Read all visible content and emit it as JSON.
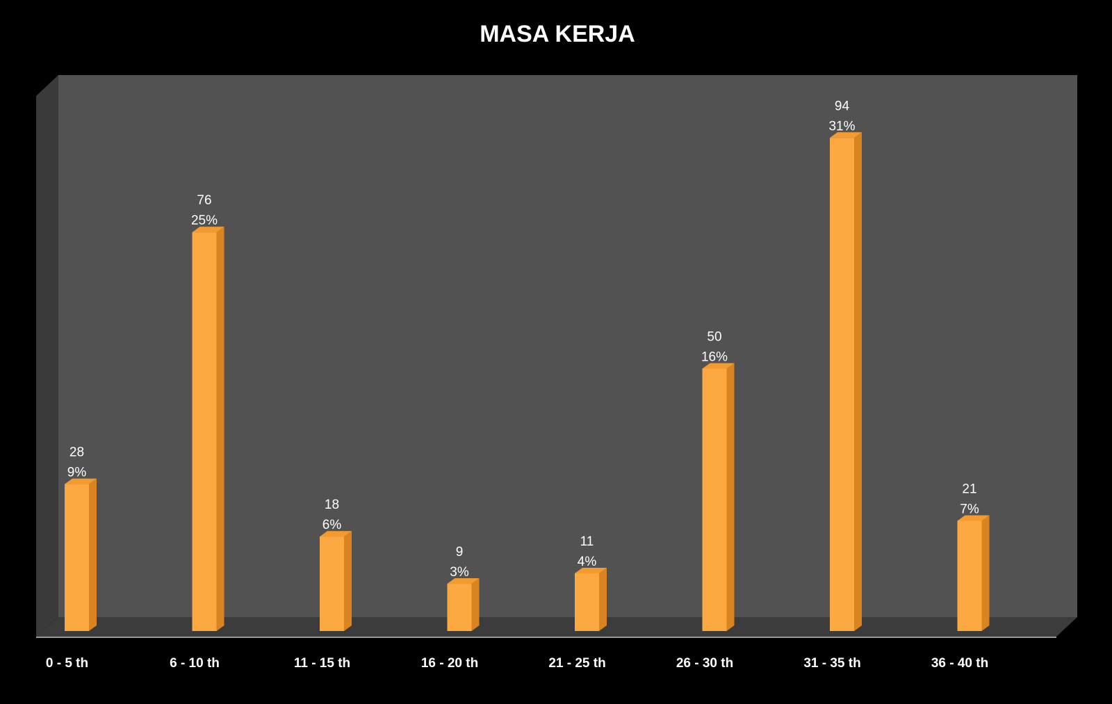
{
  "chart_data": {
    "type": "bar",
    "title": "MASA KERJA",
    "categories": [
      "0 - 5 th",
      "6 - 10 th",
      "11 - 15 th",
      "16 - 20 th",
      "21 - 25 th",
      "26 - 30 th",
      "31 - 35 th",
      "36 - 40 th"
    ],
    "values": [
      28,
      76,
      18,
      9,
      11,
      50,
      94,
      21
    ],
    "percent_labels": [
      "9%",
      "25%",
      "6%",
      "3%",
      "4%",
      "16%",
      "31%",
      "7%"
    ],
    "ylim": [
      0,
      100
    ],
    "grid": false,
    "legend": "none",
    "three_d": true
  },
  "colors": {
    "background": "#000000",
    "wall": "#525252",
    "side_wall": "#3a3a3a",
    "floor": "#3c3c3c",
    "bar_front": "#FBA940",
    "bar_side": "#D98420",
    "bar_top": "#F59A2E",
    "text": "#FFFFFF"
  }
}
